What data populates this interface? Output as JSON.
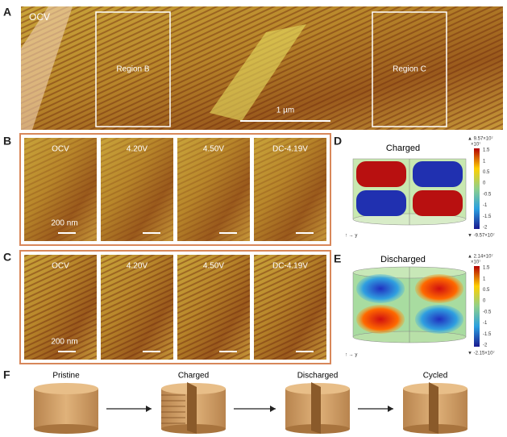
{
  "panels": {
    "a": {
      "label": "A",
      "overlay": "OCV",
      "regions": [
        "Region B",
        "Region C"
      ],
      "scale_bar": "1 µm"
    },
    "b": {
      "label": "B",
      "frames": [
        "OCV",
        "4.20V",
        "4.50V",
        "DC-4.19V"
      ],
      "scale_bar": "200 nm"
    },
    "c": {
      "label": "C",
      "frames": [
        "OCV",
        "4.20V",
        "4.50V",
        "DC-4.19V"
      ],
      "scale_bar": "200 nm"
    },
    "d": {
      "label": "D",
      "title": "Charged",
      "max": "▲ 9.57×10⁷",
      "unit": "×10⁷",
      "ticks": [
        "1.5",
        "1",
        "0.5",
        "0",
        "-0.5",
        "-1",
        "-1.5",
        "-2"
      ],
      "min": "▼ -9.57×10⁷"
    },
    "e": {
      "label": "E",
      "title": "Discharged",
      "max": "▲ 2.14×10⁷",
      "unit": "×10⁷",
      "ticks": [
        "1.5",
        "1",
        "0.5",
        "0",
        "-0.5",
        "-1",
        "-1.5",
        "-2"
      ],
      "min": "▼ -2.15×10⁷"
    },
    "f": {
      "label": "F",
      "stages": [
        "Pristine",
        "Charged",
        "Discharged",
        "Cycled"
      ]
    }
  }
}
